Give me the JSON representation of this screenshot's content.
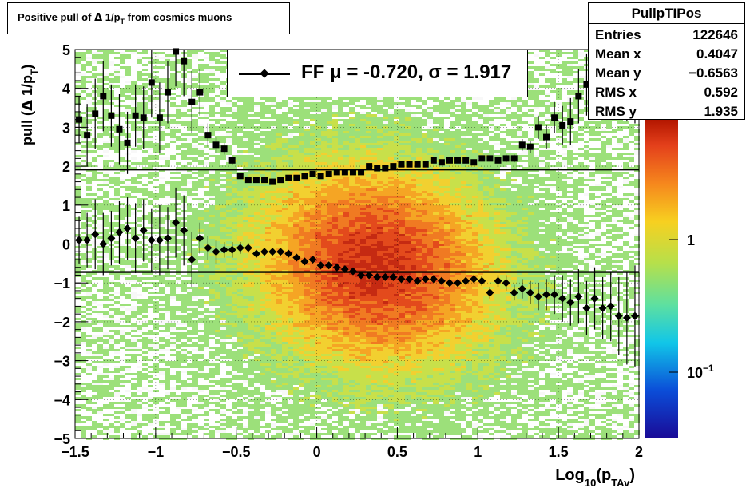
{
  "title": "Positive pull of Δ 1/p_T from cosmics muons",
  "title_parts": {
    "a": "Positive pull of ",
    "delta": "Δ",
    "b": " 1/p",
    "sub": "T",
    "c": " from cosmics muons"
  },
  "stats": {
    "name": "PullpTIPos",
    "rows": [
      {
        "key": "Entries",
        "value": "122646"
      },
      {
        "key": "Mean x",
        "value": "0.4047"
      },
      {
        "key": "Mean y",
        "value": "−0.6563"
      },
      {
        "key": "RMS x",
        "value": "0.592"
      },
      {
        "key": "RMS y",
        "value": "1.935"
      }
    ]
  },
  "legend": {
    "label": "FF μ = -0.720, σ =   1.917",
    "marker": "diamond-icon"
  },
  "axes": {
    "x_label": "Log10(pTAv)",
    "x_label_parts": {
      "a": "Log",
      "sub1": "10",
      "b": "(p",
      "sub2": "TAv",
      "c": ")"
    },
    "y_label": "pull (Δ 1/pT)",
    "y_label_parts": {
      "a": "pull (",
      "delta": "Δ",
      "b": " 1/p",
      "sub": "T",
      "c": ")"
    },
    "x_ticks": [
      "−1.5",
      "−1",
      "−0.5",
      "0",
      "0.5",
      "1",
      "1.5",
      "2"
    ],
    "y_ticks": [
      "5",
      "4",
      "3",
      "2",
      "1",
      "0",
      "−1",
      "−2",
      "−3",
      "−4",
      "−5"
    ],
    "z_ticks": [
      {
        "base": "1",
        "exp": ""
      },
      {
        "base": "10",
        "exp": "−1"
      }
    ]
  },
  "colors": {
    "low": "#22c55e",
    "mid": "#f59e0b",
    "high": "#c81e00",
    "marker": "#000000"
  },
  "chart_data": {
    "type": "heatmap",
    "title": "Positive pull of Δ 1/p_T from cosmics muons",
    "xlabel": "Log10(pTAv)",
    "ylabel": "pull (Δ 1/pT)",
    "xlim": [
      -1.5,
      2
    ],
    "ylim": [
      -5,
      5
    ],
    "z_scale": "log",
    "legend_position": "top-center",
    "fit_lines": {
      "mean": -0.72,
      "sigma": 1.917
    },
    "series": [
      {
        "name": "mean",
        "x": [
          -1.475,
          -1.425,
          -1.375,
          -1.325,
          -1.275,
          -1.225,
          -1.175,
          -1.125,
          -1.075,
          -1.025,
          -0.975,
          -0.925,
          -0.875,
          -0.825,
          -0.775,
          -0.725,
          -0.675,
          -0.625,
          -0.575,
          -0.525,
          -0.475,
          -0.425,
          -0.375,
          -0.325,
          -0.275,
          -0.225,
          -0.175,
          -0.125,
          -0.075,
          -0.025,
          0.025,
          0.075,
          0.125,
          0.175,
          0.225,
          0.275,
          0.325,
          0.375,
          0.425,
          0.475,
          0.525,
          0.575,
          0.625,
          0.675,
          0.725,
          0.775,
          0.825,
          0.875,
          0.925,
          0.975,
          1.025,
          1.075,
          1.125,
          1.175,
          1.225,
          1.275,
          1.325,
          1.375,
          1.425,
          1.475,
          1.525,
          1.575,
          1.625,
          1.675,
          1.725,
          1.775,
          1.825,
          1.875,
          1.925,
          1.975
        ],
        "y": [
          0.1,
          0.1,
          0.25,
          0.0,
          0.15,
          0.3,
          0.4,
          0.15,
          0.35,
          0.1,
          0.1,
          0.15,
          0.55,
          0.35,
          -0.4,
          0.15,
          -0.1,
          -0.2,
          -0.15,
          -0.15,
          -0.1,
          -0.1,
          -0.25,
          -0.2,
          -0.2,
          -0.2,
          -0.25,
          -0.35,
          -0.45,
          -0.4,
          -0.55,
          -0.55,
          -0.6,
          -0.65,
          -0.7,
          -0.8,
          -0.8,
          -0.85,
          -0.85,
          -0.85,
          -0.9,
          -0.9,
          -0.95,
          -0.9,
          -0.9,
          -0.95,
          -1.0,
          -1.0,
          -0.95,
          -0.9,
          -0.95,
          -1.25,
          -0.95,
          -1.0,
          -1.25,
          -1.15,
          -1.25,
          -1.35,
          -1.3,
          -1.3,
          -1.4,
          -1.5,
          -1.35,
          -1.65,
          -1.4,
          -1.65,
          -1.6,
          -1.85,
          -1.9,
          -1.85
        ],
        "err": [
          0.6,
          0.7,
          0.9,
          0.8,
          0.7,
          0.8,
          0.8,
          0.9,
          0.8,
          0.8,
          0.9,
          0.8,
          0.9,
          0.9,
          0.7,
          0.4,
          0.3,
          0.3,
          0.2,
          0.2,
          0.15,
          0.12,
          0.1,
          0.1,
          0.08,
          0.08,
          0.07,
          0.07,
          0.06,
          0.06,
          0.05,
          0.05,
          0.05,
          0.05,
          0.05,
          0.05,
          0.05,
          0.05,
          0.05,
          0.05,
          0.05,
          0.06,
          0.06,
          0.06,
          0.07,
          0.07,
          0.08,
          0.09,
          0.1,
          0.1,
          0.12,
          0.15,
          0.15,
          0.2,
          0.2,
          0.25,
          0.3,
          0.35,
          0.4,
          0.5,
          0.6,
          0.6,
          0.7,
          0.7,
          0.8,
          0.8,
          0.9,
          1.0,
          1.2,
          1.3
        ]
      },
      {
        "name": "sigma",
        "x": [
          -1.475,
          -1.425,
          -1.375,
          -1.325,
          -1.275,
          -1.225,
          -1.175,
          -1.125,
          -1.075,
          -1.025,
          -0.975,
          -0.925,
          -0.875,
          -0.825,
          -0.775,
          -0.725,
          -0.675,
          -0.625,
          -0.575,
          -0.525,
          -0.475,
          -0.425,
          -0.375,
          -0.325,
          -0.275,
          -0.225,
          -0.175,
          -0.125,
          -0.075,
          -0.025,
          0.025,
          0.075,
          0.125,
          0.175,
          0.225,
          0.275,
          0.325,
          0.375,
          0.425,
          0.475,
          0.525,
          0.575,
          0.625,
          0.675,
          0.725,
          0.775,
          0.825,
          0.875,
          0.925,
          0.975,
          1.025,
          1.075,
          1.125,
          1.175,
          1.225,
          1.275,
          1.325,
          1.375,
          1.425,
          1.475,
          1.525,
          1.575,
          1.625,
          1.675,
          1.725,
          1.775,
          1.825,
          1.875,
          1.925,
          1.975
        ],
        "y": [
          3.2,
          2.8,
          3.35,
          3.8,
          3.3,
          2.95,
          2.6,
          3.3,
          3.25,
          4.15,
          3.25,
          3.9,
          4.95,
          4.7,
          3.65,
          3.9,
          2.8,
          2.55,
          2.45,
          2.15,
          1.75,
          1.65,
          1.65,
          1.65,
          1.6,
          1.65,
          1.7,
          1.7,
          1.75,
          1.8,
          1.75,
          1.8,
          1.85,
          1.85,
          1.85,
          1.85,
          2.0,
          1.95,
          1.95,
          2.0,
          2.05,
          2.05,
          2.05,
          2.05,
          2.15,
          2.1,
          2.15,
          2.15,
          2.15,
          2.1,
          2.2,
          2.2,
          2.15,
          2.2,
          2.2,
          2.55,
          2.5,
          3.0,
          2.75,
          3.25,
          3.05,
          3.15,
          3.8,
          4.1,
          4.45,
          4.85,
          4.25,
          4.2,
          4.25,
          4.1
        ],
        "err": [
          0.6,
          0.8,
          0.9,
          0.9,
          0.8,
          0.9,
          0.8,
          0.8,
          0.8,
          0.9,
          0.9,
          0.8,
          0.9,
          0.9,
          0.8,
          0.6,
          0.3,
          0.2,
          0.15,
          0.1,
          0.05,
          0.05,
          0.05,
          0.05,
          0.04,
          0.04,
          0.04,
          0.04,
          0.04,
          0.04,
          0.04,
          0.04,
          0.04,
          0.04,
          0.04,
          0.04,
          0.04,
          0.04,
          0.04,
          0.04,
          0.04,
          0.04,
          0.04,
          0.04,
          0.04,
          0.05,
          0.05,
          0.05,
          0.06,
          0.06,
          0.07,
          0.08,
          0.08,
          0.1,
          0.1,
          0.15,
          0.15,
          0.3,
          0.3,
          0.4,
          0.5,
          0.6,
          0.7,
          0.8,
          0.8,
          0.9,
          1.0,
          1.0,
          1.1,
          1.0
        ]
      }
    ]
  }
}
